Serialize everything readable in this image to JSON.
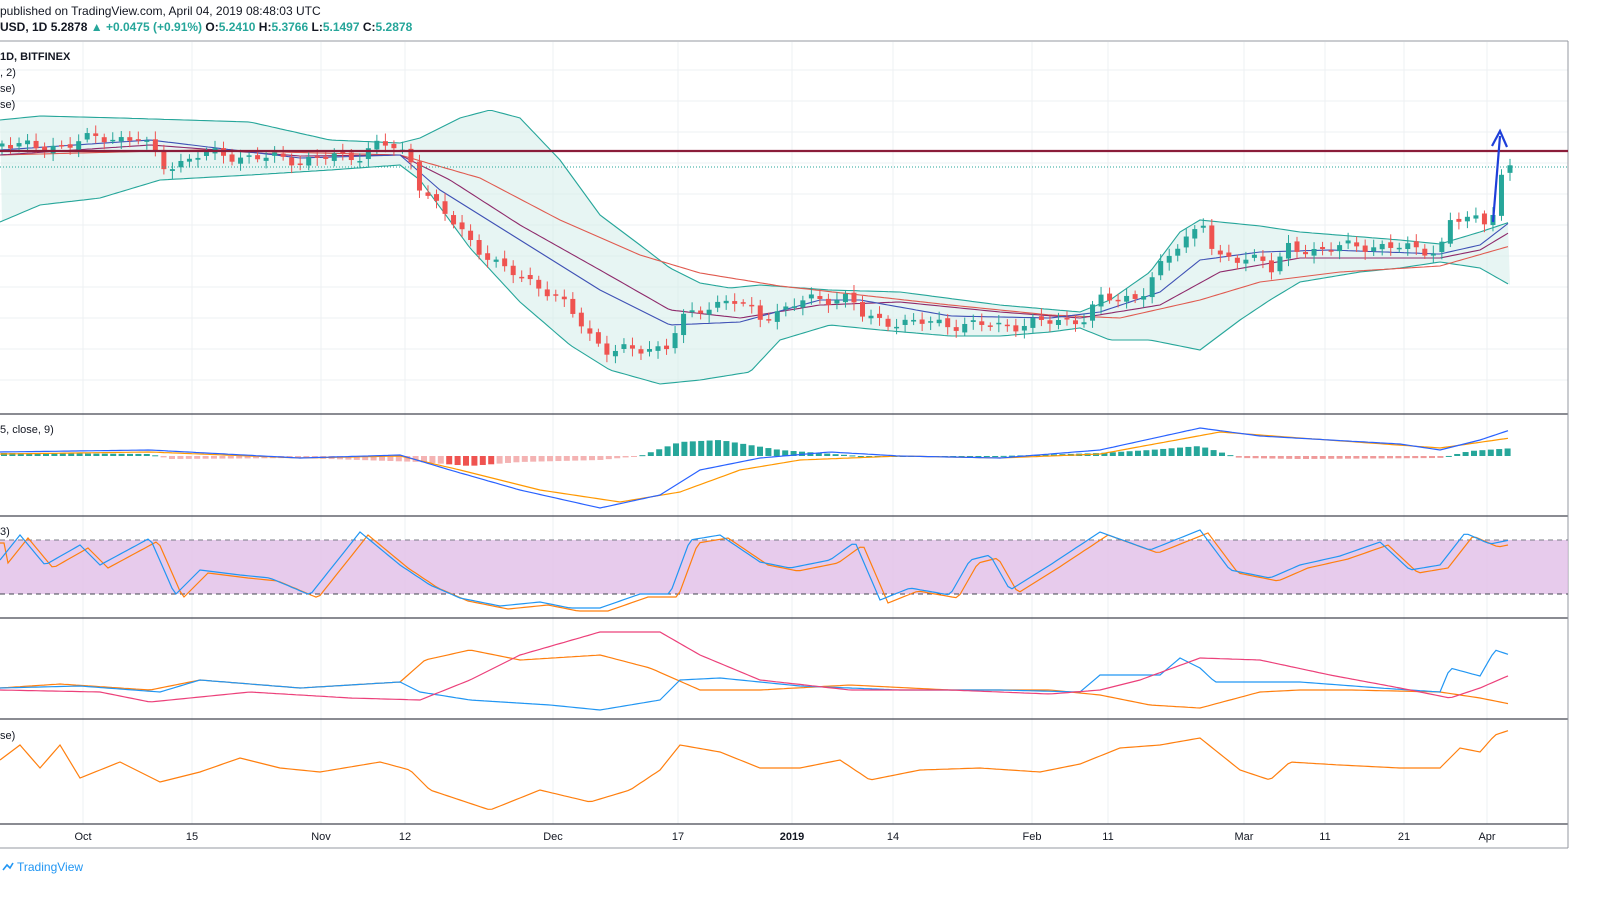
{
  "header": {
    "published": "published on TradingView.com, April 04, 2019 08:48:03 UTC",
    "symbol": "USD, 1D",
    "last": "5.2878",
    "arrow": "▲",
    "change": "+0.0475 (+0.91%)",
    "o_label": "O:",
    "o": "5.2410",
    "h_label": "H:",
    "h": "5.3766",
    "l_label": "L:",
    "l": "5.1497",
    "c_label": "C:",
    "c": "5.2878"
  },
  "pane_labels": {
    "main_exchange": "1D, BITFINEX",
    "main_line2": ", 2)",
    "main_line3": "se)",
    "main_line4": "se)",
    "macd": "5, close, 9)",
    "stoch": "3)",
    "rsi": "se)"
  },
  "footer": {
    "brand": "TradingView"
  },
  "colors": {
    "bull": "#26a69a",
    "bear": "#ef5350",
    "band": "#26a69a",
    "bandFill": "#d4ece9",
    "ma1": "#3f51b5",
    "ma2": "#8e2a6b",
    "ma3": "#e05a4f",
    "hline": "#8b1d3a",
    "macd": "#2962ff",
    "signal": "#ff9800",
    "stochK": "#2196f3",
    "stochD": "#ff7f0e",
    "band_fill": "#e1bee7",
    "dmiPlus": "#2196f3",
    "dmiMinus": "#ff7f0e",
    "adx": "#ec407a",
    "rsiLine": "#ff7f0e",
    "arrow": "#1e3fd9"
  },
  "chart_data": {
    "type": "candlestick",
    "x_ticks": [
      "Oct",
      "15",
      "Nov",
      "12",
      "Dec",
      "17",
      "2019",
      "14",
      "Feb",
      "11",
      "Mar",
      "11",
      "21",
      "Apr"
    ],
    "horizontal_level": "resistance line near 5.4",
    "annotation": "blue upward arrow at latest candle"
  }
}
